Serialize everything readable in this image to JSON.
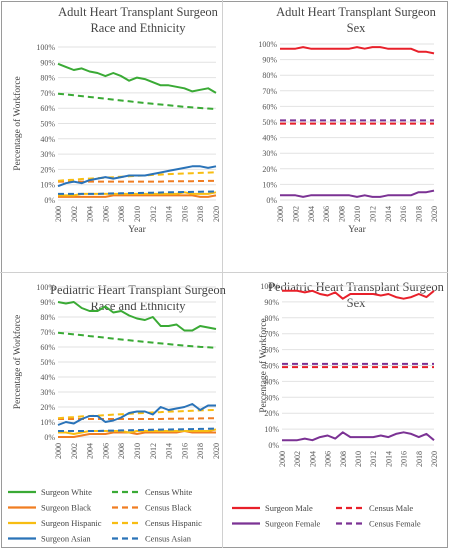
{
  "chart_data": [
    {
      "id": "adult-race",
      "type": "line",
      "title_line1": "Adult Heart Transplant Surgeon",
      "title_line2": "Race and Ethnicity",
      "xlabel": "Year",
      "ylabel": "Percentage of Workforce",
      "ylim": [
        0,
        100
      ],
      "yticks": [
        "0%",
        "10%",
        "20%",
        "30%",
        "40%",
        "50%",
        "60%",
        "70%",
        "80%",
        "90%",
        "100%"
      ],
      "xtick_labels": [
        "2000",
        "2002",
        "2004",
        "2006",
        "2008",
        "2010",
        "2012",
        "2014",
        "2016",
        "2018",
        "2020"
      ],
      "x": [
        2000,
        2001,
        2002,
        2003,
        2004,
        2005,
        2006,
        2007,
        2008,
        2009,
        2010,
        2011,
        2012,
        2013,
        2014,
        2015,
        2016,
        2017,
        2018,
        2019,
        2020
      ],
      "series": [
        {
          "key": "sw",
          "color": "#3aaa35",
          "dash": false,
          "values": [
            89,
            87,
            85,
            86,
            84,
            83,
            81,
            83,
            81,
            78,
            80,
            79,
            77,
            75,
            75,
            74,
            73,
            71,
            72,
            73,
            70
          ]
        },
        {
          "key": "cw",
          "color": "#3aaa35",
          "dash": true,
          "values": [
            69.5,
            69,
            68.4,
            67.9,
            67.3,
            66.8,
            66.2,
            65.6,
            65,
            64.5,
            63.9,
            63.4,
            62.9,
            62.4,
            61.9,
            61.4,
            60.9,
            60.5,
            60.1,
            59.8,
            59.5
          ]
        },
        {
          "key": "sb",
          "color": "#f07d22",
          "dash": false,
          "values": [
            2,
            2,
            2,
            2,
            2,
            2,
            2,
            3,
            3,
            3,
            3,
            3,
            3,
            3,
            3,
            3,
            3,
            3,
            2,
            2,
            3
          ]
        },
        {
          "key": "cb",
          "color": "#f07d22",
          "dash": true,
          "values": [
            12,
            12,
            12,
            12,
            12,
            12,
            12,
            12,
            12,
            12,
            12,
            12,
            12,
            12,
            12.2,
            12.2,
            12.3,
            12.3,
            12.4,
            12.5,
            12.5
          ]
        },
        {
          "key": "sh",
          "color": "#f7bd12",
          "dash": false,
          "values": [
            3,
            3,
            3,
            4,
            4,
            4,
            4,
            4,
            4,
            4,
            4,
            4,
            4,
            4,
            4,
            4,
            5,
            4,
            4,
            4,
            5
          ]
        },
        {
          "key": "ch",
          "color": "#f7bd12",
          "dash": true,
          "values": [
            12.5,
            13,
            13.3,
            13.7,
            14,
            14.3,
            14.6,
            14.9,
            15.2,
            15.5,
            15.8,
            16.1,
            16.4,
            16.6,
            16.9,
            17.1,
            17.3,
            17.5,
            17.7,
            17.9,
            18.1
          ]
        },
        {
          "key": "sa",
          "color": "#2a73b8",
          "dash": false,
          "values": [
            9,
            11,
            12,
            11,
            13,
            14,
            15,
            14,
            15,
            16,
            16,
            16,
            17,
            18,
            19,
            20,
            21,
            22,
            22,
            21,
            22
          ]
        },
        {
          "key": "ca",
          "color": "#2a73b8",
          "dash": true,
          "values": [
            4,
            4,
            4,
            4,
            4,
            4,
            4.2,
            4.3,
            4.4,
            4.5,
            4.6,
            4.7,
            4.8,
            4.9,
            5,
            5.1,
            5.2,
            5.3,
            5.4,
            5.5,
            5.6
          ]
        }
      ]
    },
    {
      "id": "adult-sex",
      "type": "line",
      "title_line1": "Adult Heart Transplant Surgeon",
      "title_line2": "Sex",
      "xlabel": "Year",
      "ylabel": "",
      "ylim": [
        0,
        100
      ],
      "yticks": [
        "0%",
        "10%",
        "20%",
        "30%",
        "40%",
        "50%",
        "60%",
        "70%",
        "80%",
        "90%",
        "100%"
      ],
      "xtick_labels": [
        "2000",
        "2002",
        "2004",
        "2006",
        "2008",
        "2010",
        "2012",
        "2014",
        "2016",
        "2018",
        "2020"
      ],
      "x": [
        2000,
        2001,
        2002,
        2003,
        2004,
        2005,
        2006,
        2007,
        2008,
        2009,
        2010,
        2011,
        2012,
        2013,
        2014,
        2015,
        2016,
        2017,
        2018,
        2019,
        2020
      ],
      "series": [
        {
          "key": "sm",
          "color": "#e8202a",
          "dash": false,
          "values": [
            97,
            97,
            97,
            98,
            97,
            97,
            97,
            97,
            97,
            97,
            98,
            97,
            98,
            98,
            97,
            97,
            97,
            97,
            95,
            95,
            94
          ]
        },
        {
          "key": "cm",
          "color": "#e8202a",
          "dash": true,
          "values": [
            49,
            49,
            49,
            49,
            49,
            49,
            49,
            49,
            49,
            49,
            49,
            49,
            49,
            49,
            49,
            49,
            49,
            49,
            49,
            49,
            49
          ]
        },
        {
          "key": "sf",
          "color": "#7b3294",
          "dash": false,
          "values": [
            3,
            3,
            3,
            2,
            3,
            3,
            3,
            3,
            3,
            3,
            2,
            3,
            2,
            2,
            3,
            3,
            3,
            3,
            5,
            5,
            6
          ]
        },
        {
          "key": "cf",
          "color": "#7b3294",
          "dash": true,
          "values": [
            51,
            51,
            51,
            51,
            51,
            51,
            51,
            51,
            51,
            51,
            51,
            51,
            51,
            51,
            51,
            51,
            51,
            51,
            51,
            51,
            51
          ]
        }
      ]
    },
    {
      "id": "ped-race",
      "type": "line",
      "title_line1": "Pediatric Heart Transplant Surgeon",
      "title_line2": "Race and Ethnicity",
      "xlabel": "",
      "ylabel": "Percentage of Workforce",
      "ylim": [
        0,
        100
      ],
      "yticks": [
        "0%",
        "10%",
        "20%",
        "30%",
        "40%",
        "50%",
        "60%",
        "70%",
        "80%",
        "90%",
        "100%"
      ],
      "xtick_labels": [
        "2000",
        "2002",
        "2004",
        "2006",
        "2008",
        "2010",
        "2012",
        "2014",
        "2016",
        "2018",
        "2020"
      ],
      "x": [
        2000,
        2001,
        2002,
        2003,
        2004,
        2005,
        2006,
        2007,
        2008,
        2009,
        2010,
        2011,
        2012,
        2013,
        2014,
        2015,
        2016,
        2017,
        2018,
        2019,
        2020
      ],
      "series": [
        {
          "key": "sw",
          "color": "#3aaa35",
          "dash": false,
          "values": [
            90,
            89,
            90,
            86,
            84,
            84,
            87,
            83,
            84,
            81,
            79,
            78,
            80,
            74,
            74,
            75,
            71,
            71,
            74,
            73,
            72
          ]
        },
        {
          "key": "cw",
          "color": "#3aaa35",
          "dash": true,
          "values": [
            69.5,
            69,
            68.4,
            67.9,
            67.3,
            66.8,
            66.2,
            65.6,
            65,
            64.5,
            63.9,
            63.4,
            62.9,
            62.4,
            61.9,
            61.4,
            60.9,
            60.5,
            60.1,
            59.8,
            59.5
          ]
        },
        {
          "key": "sb",
          "color": "#f07d22",
          "dash": false,
          "values": [
            0,
            0,
            0,
            1,
            2,
            2,
            2,
            3,
            3,
            3,
            2,
            3,
            3,
            3,
            3,
            3,
            4,
            3,
            3,
            3,
            3
          ]
        },
        {
          "key": "cb",
          "color": "#f07d22",
          "dash": true,
          "values": [
            12,
            12,
            12,
            12,
            12,
            12,
            12,
            12,
            12,
            12,
            12,
            12,
            12,
            12,
            12.2,
            12.2,
            12.3,
            12.3,
            12.4,
            12.5,
            12.5
          ]
        },
        {
          "key": "sh",
          "color": "#f7bd12",
          "dash": false,
          "values": [
            3,
            3,
            2,
            3,
            4,
            4,
            4,
            4,
            4,
            3,
            4,
            4,
            4,
            4,
            4,
            4,
            4,
            4,
            4,
            4,
            5
          ]
        },
        {
          "key": "ch",
          "color": "#f7bd12",
          "dash": true,
          "values": [
            12.5,
            13,
            13.3,
            13.7,
            14,
            14.3,
            14.6,
            14.9,
            15.2,
            15.5,
            15.8,
            16.1,
            16.4,
            16.6,
            16.9,
            17.1,
            17.3,
            17.5,
            17.7,
            17.9,
            18.1
          ]
        },
        {
          "key": "sa",
          "color": "#2a73b8",
          "dash": false,
          "values": [
            8,
            10,
            9,
            12,
            14,
            14,
            10,
            11,
            13,
            16,
            17,
            17,
            15,
            20,
            18,
            19,
            20,
            22,
            18,
            21,
            21
          ]
        },
        {
          "key": "ca",
          "color": "#2a73b8",
          "dash": true,
          "values": [
            4,
            4,
            4,
            4,
            4,
            4,
            4.2,
            4.3,
            4.4,
            4.5,
            4.6,
            4.7,
            4.8,
            4.9,
            5,
            5.1,
            5.2,
            5.3,
            5.4,
            5.5,
            5.6
          ]
        }
      ]
    },
    {
      "id": "ped-sex",
      "type": "line",
      "title_line1": "Pediatric Heart Transplant Surgeon",
      "title_line2": "Sex",
      "xlabel": "",
      "ylabel": "Percentage of Workforce",
      "ylim": [
        0,
        100
      ],
      "yticks": [
        "0%",
        "10%",
        "20%",
        "30%",
        "40%",
        "50%",
        "60%",
        "70%",
        "80%",
        "90%",
        "100%"
      ],
      "xtick_labels": [
        "2000",
        "2002",
        "2004",
        "2006",
        "2008",
        "2010",
        "2012",
        "2014",
        "2016",
        "2018",
        "2020"
      ],
      "x": [
        2000,
        2001,
        2002,
        2003,
        2004,
        2005,
        2006,
        2007,
        2008,
        2009,
        2010,
        2011,
        2012,
        2013,
        2014,
        2015,
        2016,
        2017,
        2018,
        2019,
        2020
      ],
      "series": [
        {
          "key": "sm",
          "color": "#e8202a",
          "dash": false,
          "values": [
            97,
            97,
            97,
            96,
            97,
            95,
            94,
            96,
            92,
            95,
            95,
            95,
            95,
            94,
            95,
            93,
            92,
            93,
            95,
            93,
            97
          ]
        },
        {
          "key": "cm",
          "color": "#e8202a",
          "dash": true,
          "values": [
            49,
            49,
            49,
            49,
            49,
            49,
            49,
            49,
            49,
            49,
            49,
            49,
            49,
            49,
            49,
            49,
            49,
            49,
            49,
            49,
            49
          ]
        },
        {
          "key": "sf",
          "color": "#7b3294",
          "dash": false,
          "values": [
            3,
            3,
            3,
            4,
            3,
            5,
            6,
            4,
            8,
            5,
            5,
            5,
            5,
            6,
            5,
            7,
            8,
            7,
            5,
            7,
            3
          ]
        },
        {
          "key": "cf",
          "color": "#7b3294",
          "dash": true,
          "values": [
            51,
            51,
            51,
            51,
            51,
            51,
            51,
            51,
            51,
            51,
            51,
            51,
            51,
            51,
            51,
            51,
            51,
            51,
            51,
            51,
            51
          ]
        }
      ]
    }
  ],
  "legend_race": [
    {
      "label": "Surgeon White",
      "color": "#3aaa35",
      "dash": false
    },
    {
      "label": "Census White",
      "color": "#3aaa35",
      "dash": true
    },
    {
      "label": "Surgeon Black",
      "color": "#f07d22",
      "dash": false
    },
    {
      "label": "Census Black",
      "color": "#f07d22",
      "dash": true
    },
    {
      "label": "Surgeon Hispanic",
      "color": "#f7bd12",
      "dash": false
    },
    {
      "label": "Census Hispanic",
      "color": "#f7bd12",
      "dash": true
    },
    {
      "label": "Surgeon Asian",
      "color": "#2a73b8",
      "dash": false
    },
    {
      "label": "Census Asian",
      "color": "#2a73b8",
      "dash": true
    }
  ],
  "legend_sex": [
    {
      "label": "Surgeon Male",
      "color": "#e8202a",
      "dash": false
    },
    {
      "label": "Census Male",
      "color": "#e8202a",
      "dash": true
    },
    {
      "label": "Surgeon Female",
      "color": "#7b3294",
      "dash": false
    },
    {
      "label": "Census Female",
      "color": "#7b3294",
      "dash": true
    }
  ]
}
